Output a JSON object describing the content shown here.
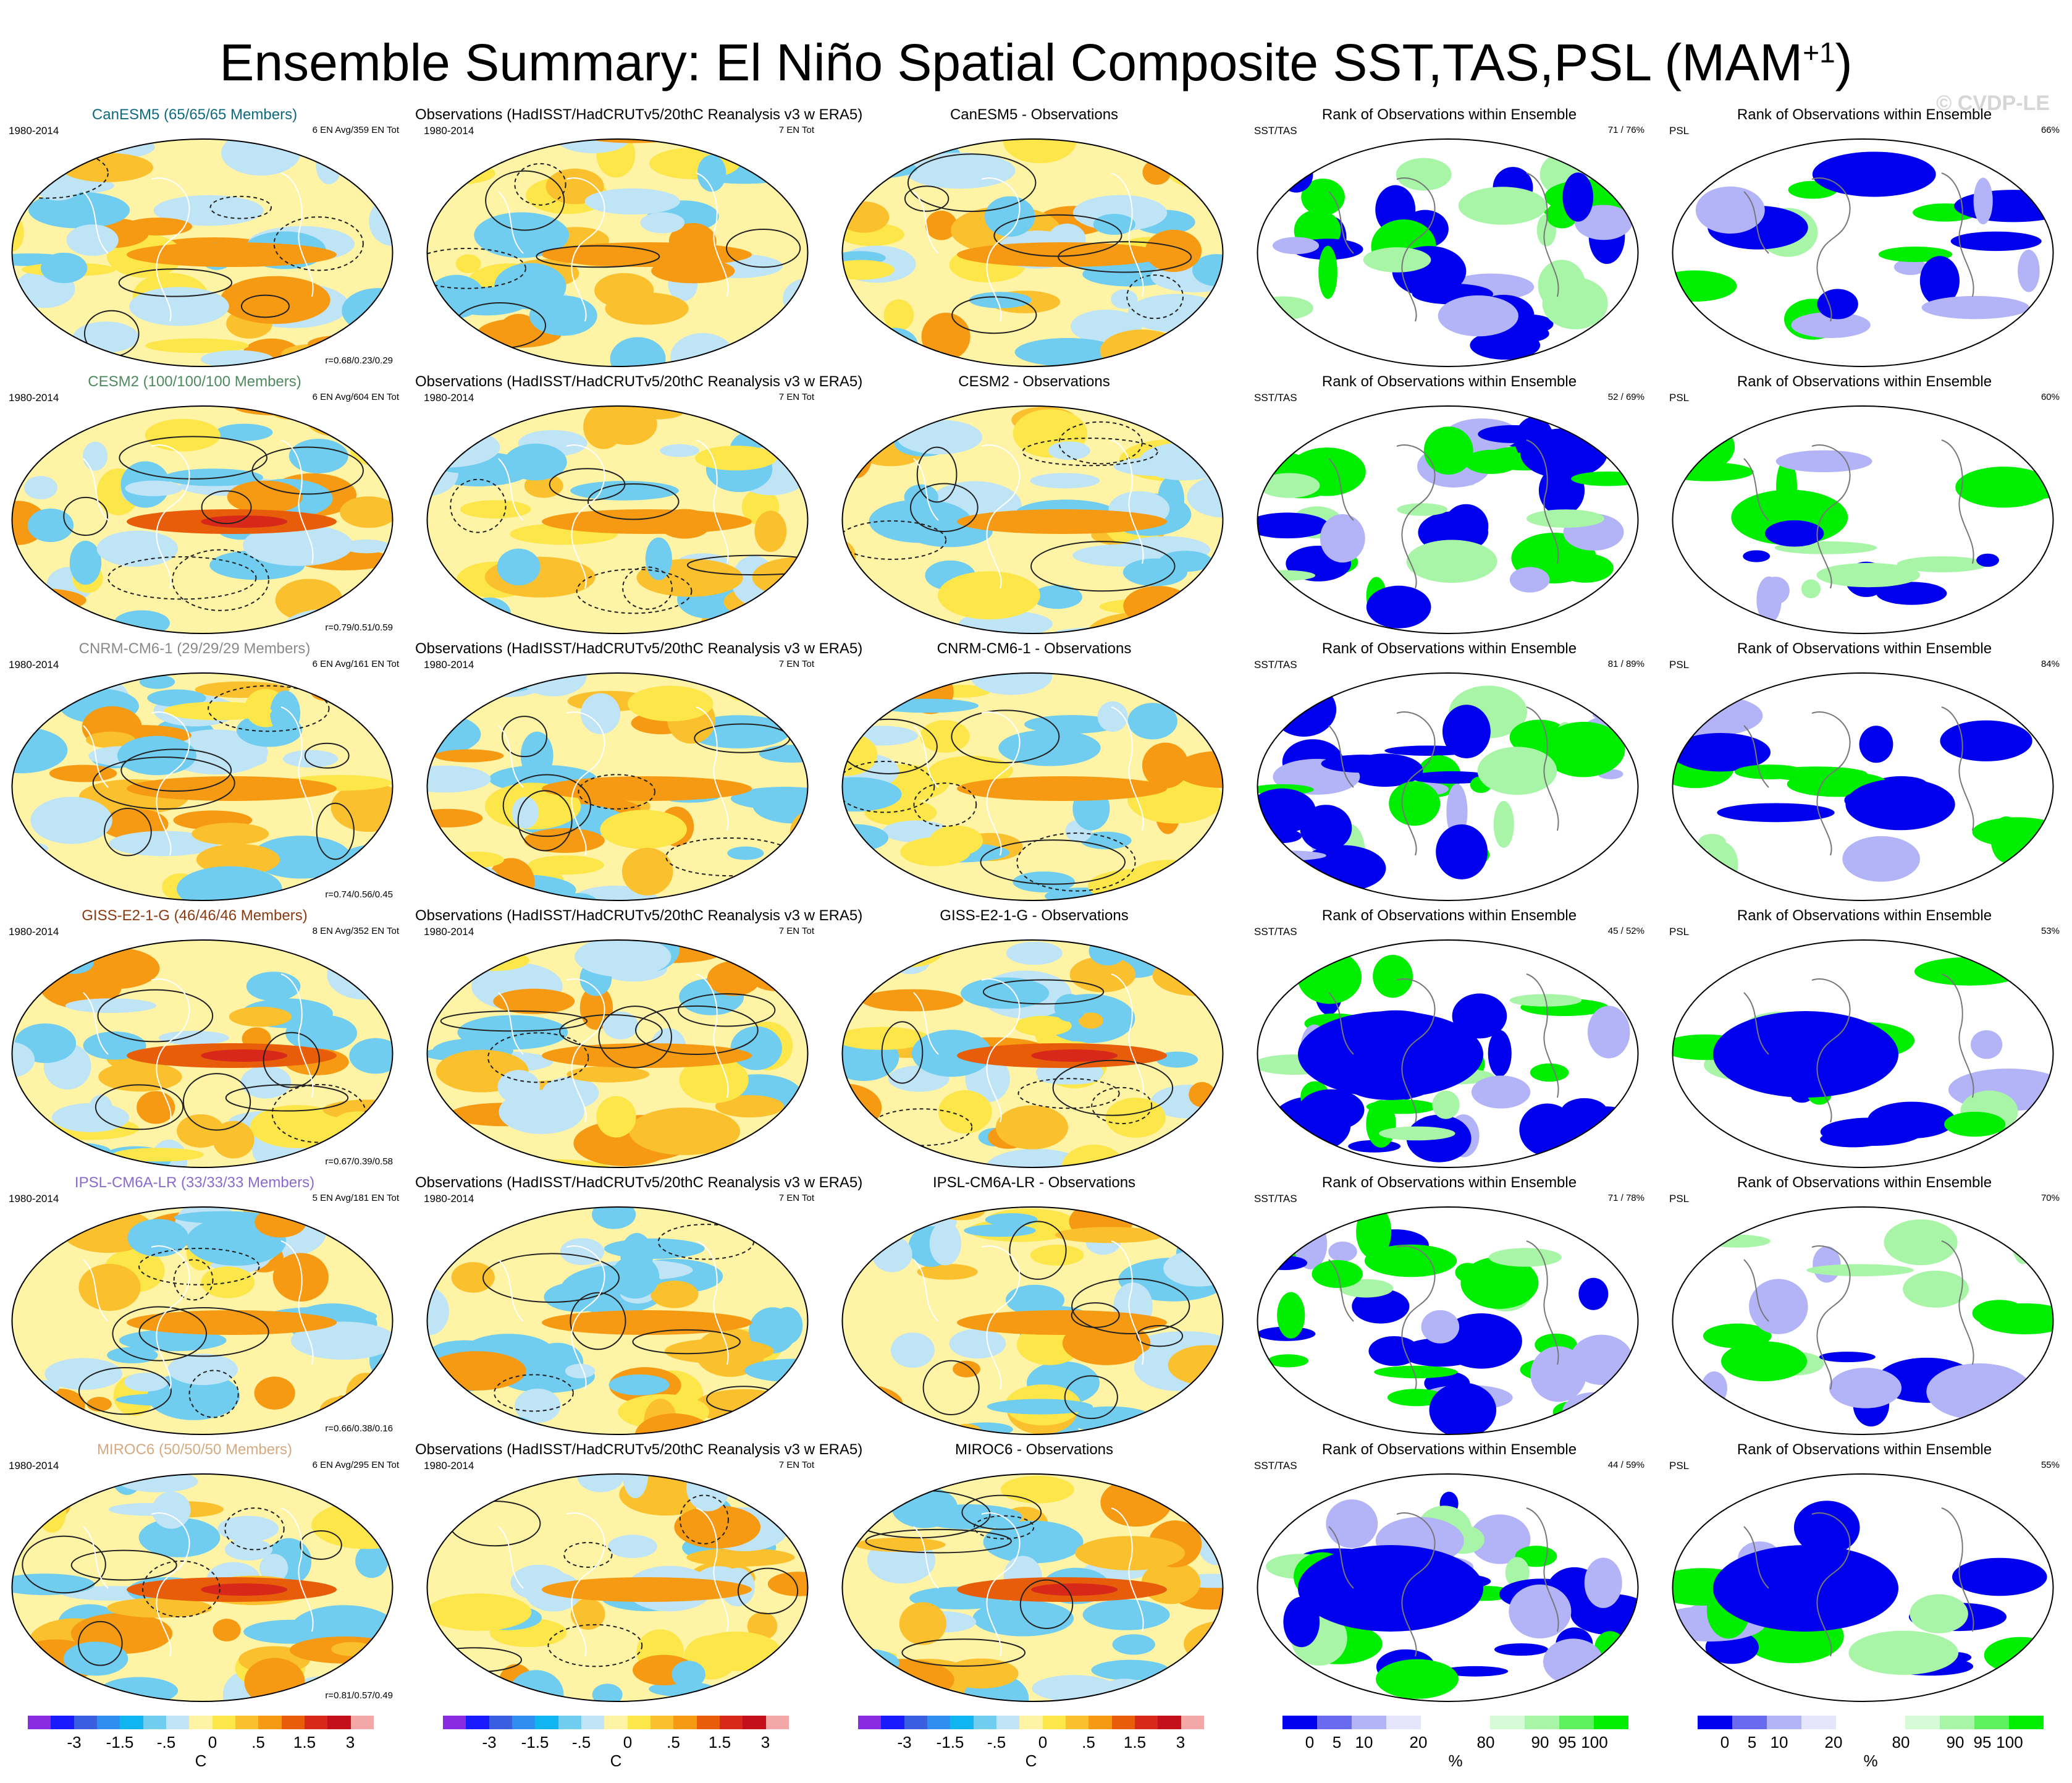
{
  "title": "Ensemble Summary: El Niño Spatial Composite SST,TAS,PSL (MAM",
  "title_sup": "+1",
  "watermark": "© CVDP-LE",
  "chart_data": {
    "type": "map-grid",
    "title": "Ensemble Summary: El Niño Spatial Composite SST,TAS,PSL (MAM+1)",
    "obs_title": "Observations (HadISST/HadCRUTv5/20thC Reanalysis v3 w ERA5)",
    "period": "1980-2014",
    "obs_count": "7 EN Tot",
    "rank_title": "Rank of Observations within Ensemble",
    "sst_label": "SST/TAS",
    "psl_label": "PSL",
    "diff_suffix": " - Observations",
    "rows": [
      {
        "model": "CanESM5",
        "model_title": "CanESM5 (65/65/65 Members)",
        "color": "#0e6b7e",
        "en_label": "6 EN Avg/359 EN Tot",
        "corr": "r=0.68/0.23/0.29",
        "sst_rank": "71 /  76%",
        "psl_rank": "66%"
      },
      {
        "model": "CESM2",
        "model_title": "CESM2 (100/100/100 Members)",
        "color": "#4e8a5e",
        "en_label": "6 EN Avg/604 EN Tot",
        "corr": "r=0.79/0.51/0.59",
        "sst_rank": "52 /  69%",
        "psl_rank": "60%"
      },
      {
        "model": "CNRM-CM6-1",
        "model_title": "CNRM-CM6-1 (29/29/29 Members)",
        "color": "#8a8a8a",
        "en_label": "6 EN Avg/161 EN Tot",
        "corr": "r=0.74/0.56/0.45",
        "sst_rank": "81 /  89%",
        "psl_rank": "84%"
      },
      {
        "model": "GISS-E2-1-G",
        "model_title": "GISS-E2-1-G (46/46/46 Members)",
        "color": "#8b3a12",
        "en_label": "8 EN Avg/352 EN Tot",
        "corr": "r=0.67/0.39/0.58",
        "sst_rank": "45 /  52%",
        "psl_rank": "53%"
      },
      {
        "model": "IPSL-CM6A-LR",
        "model_title": "IPSL-CM6A-LR (33/33/33 Members)",
        "color": "#8a6ad0",
        "en_label": "5 EN Avg/181 EN Tot",
        "corr": "r=0.66/0.38/0.16",
        "sst_rank": "71 /  78%",
        "psl_rank": "70%"
      },
      {
        "model": "MIROC6",
        "model_title": "MIROC6 (50/50/50 Members)",
        "color": "#d4aa80",
        "en_label": "6 EN Avg/295 EN Tot",
        "corr": "r=0.81/0.57/0.49",
        "sst_rank": "44 /  59%",
        "psl_rank": "55%"
      }
    ],
    "temp_colorbar": {
      "colors": [
        "#8a2be2",
        "#1a1aff",
        "#3a5ee0",
        "#2f8ef0",
        "#10b4f0",
        "#70cdf0",
        "#bfe4f6",
        "#fff3a6",
        "#fde64a",
        "#fbc02d",
        "#f59a12",
        "#e85d0a",
        "#d8281a",
        "#c4101a",
        "#f4a7a7"
      ],
      "tick_labels": [
        "-3",
        "-1.5",
        "-.5",
        "0",
        ".5",
        "1.5",
        "3"
      ],
      "unit": "C"
    },
    "rank_colorbar": {
      "colors": [
        "#0000ee",
        "#6a6af0",
        "#b3b3f8",
        "#e4e4fb",
        "#ffffff",
        "#ffffff",
        "#d7fbd7",
        "#a8f5a8",
        "#5ef05e",
        "#00ee00"
      ],
      "tick_labels": [
        "0",
        "5",
        "10",
        "20",
        "80",
        "90",
        "95",
        "100"
      ],
      "unit": "%"
    }
  }
}
